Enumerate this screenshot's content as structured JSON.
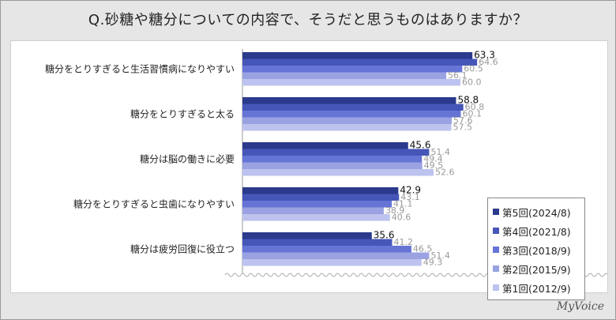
{
  "title": "Q.砂糖や糖分についての内容で、そうだと思うものはありますか？",
  "brand": "MyVoice",
  "chart_data": {
    "type": "bar",
    "orientation": "horizontal",
    "xlim": [
      0,
      100
    ],
    "grid": false,
    "legend_position": "bottom-right",
    "categories": [
      "糖分をとりすぎると生活習慣病になりやすい",
      "糖分をとりすぎると太る",
      "糖分は脳の働きに必要",
      "糖分をとりすぎると虫歯になりやすい",
      "糖分は疲労回復に役立つ"
    ],
    "series": [
      {
        "name": "第5回(2024/8)",
        "color": "#2b3a8c",
        "values": [
          63.3,
          58.8,
          45.6,
          42.9,
          35.6
        ]
      },
      {
        "name": "第4回(2021/8)",
        "color": "#4656b8",
        "values": [
          64.6,
          60.8,
          51.4,
          43.1,
          41.2
        ]
      },
      {
        "name": "第3回(2018/9)",
        "color": "#6674d6",
        "values": [
          60.5,
          60.1,
          49.4,
          41.1,
          46.5
        ]
      },
      {
        "name": "第2回(2015/9)",
        "color": "#9aa2e2",
        "values": [
          56.1,
          57.6,
          49.5,
          38.9,
          51.4
        ]
      },
      {
        "name": "第1回(2012/9)",
        "color": "#bdc3ee",
        "values": [
          60.0,
          57.5,
          52.6,
          40.6,
          49.3
        ]
      }
    ]
  }
}
